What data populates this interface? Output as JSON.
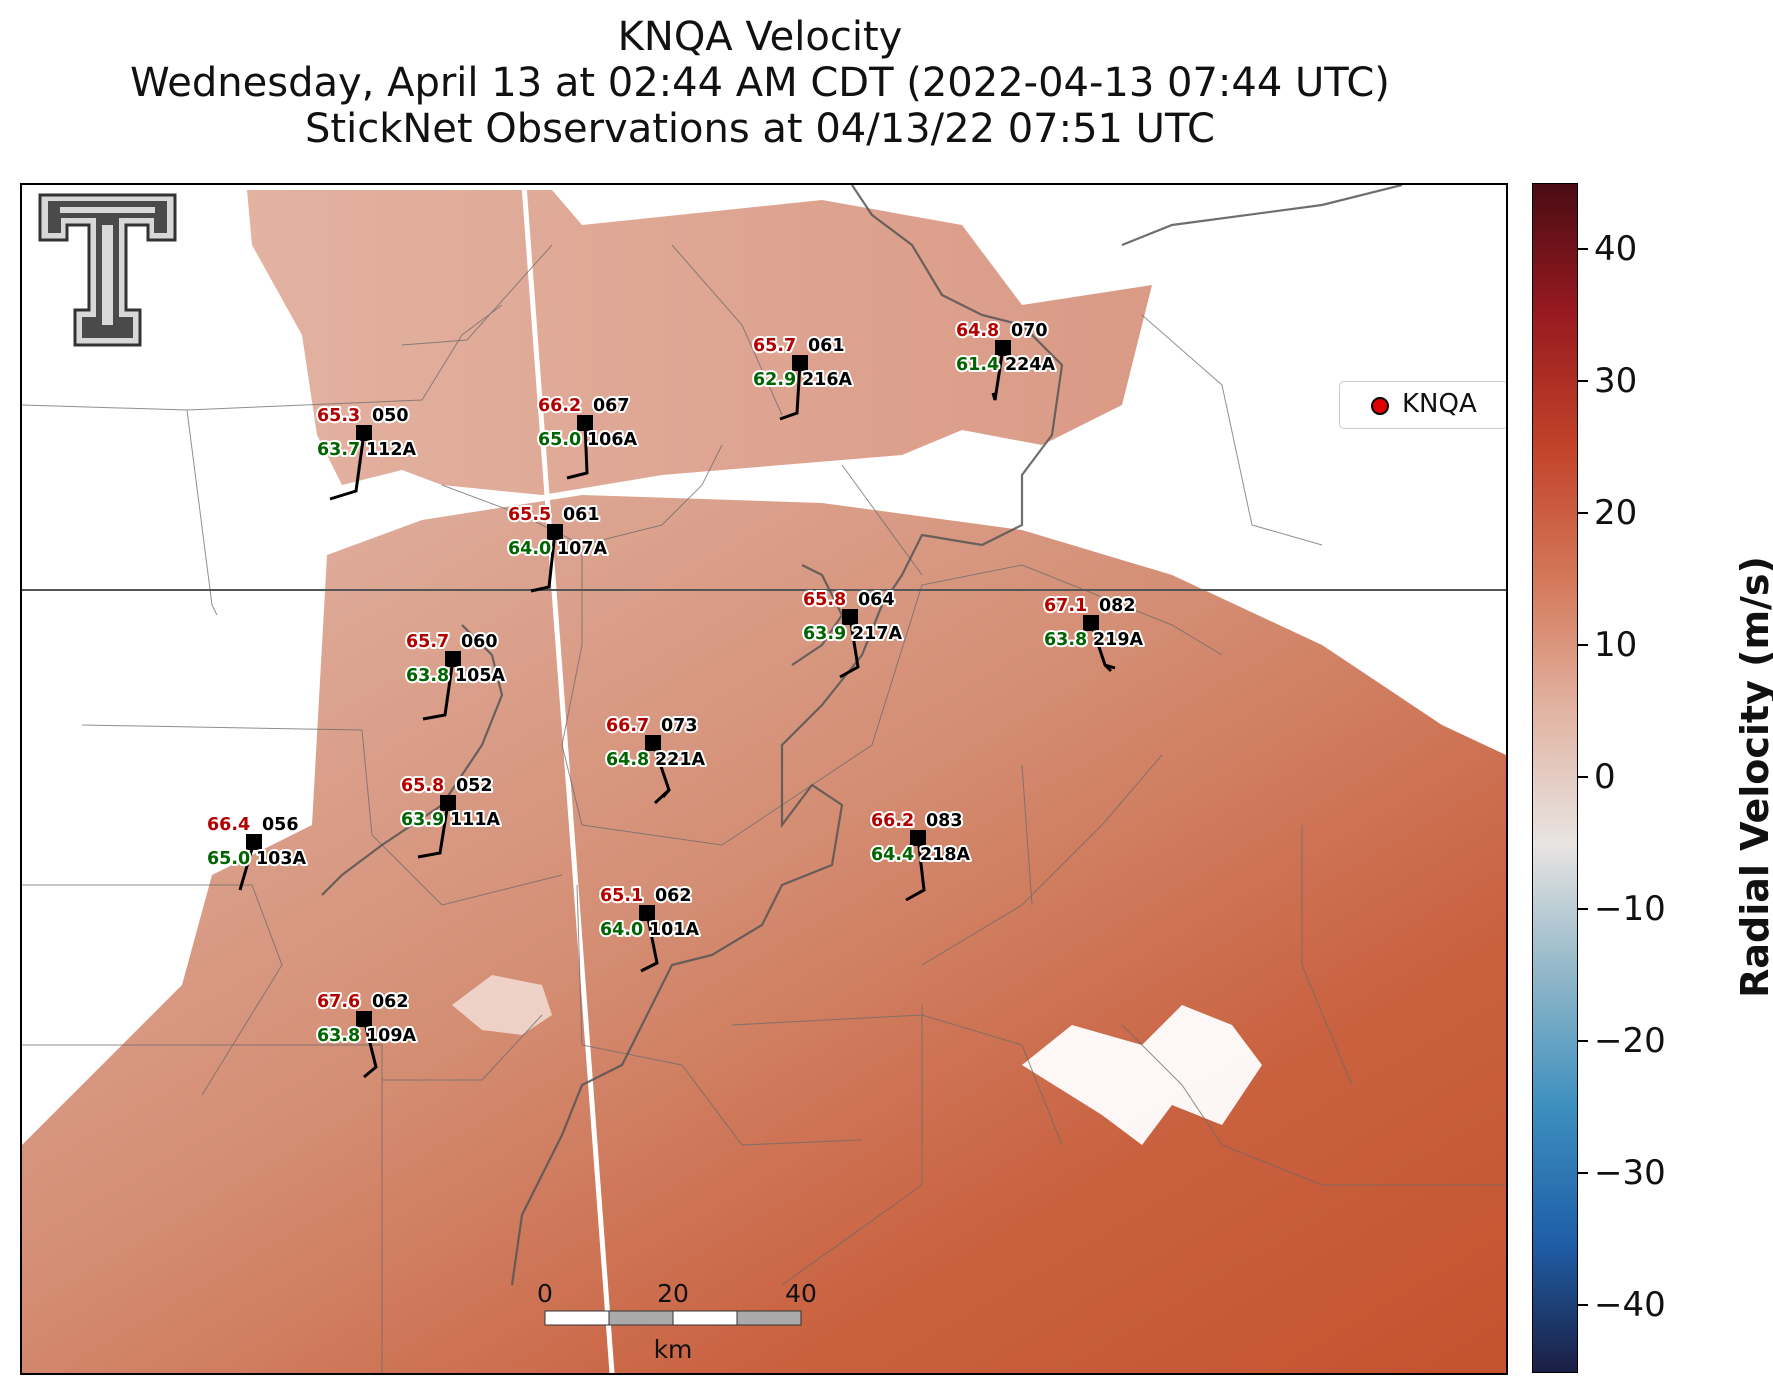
{
  "title": {
    "line1": "KNQA Velocity",
    "line2": "Wednesday, April 13 at 02:44 AM CDT (2022-04-13 07:44 UTC)",
    "line3": "StickNet Observations at 04/13/22 07:51 UTC"
  },
  "legend": {
    "label": "KNQA",
    "marker_color": "#e00000"
  },
  "colorbar": {
    "label": "Radial Velocity (m/s)",
    "ticks": [
      "40",
      "30",
      "20",
      "10",
      "0",
      "−10",
      "−20",
      "−30",
      "−40"
    ],
    "range": [
      -45,
      45
    ],
    "colors": [
      "#1b1f45",
      "#1f5fa8",
      "#3d8fbf",
      "#8fb6c8",
      "#e8e4e2",
      "#e2b4a3",
      "#d4785a",
      "#c2432a",
      "#9a1a20",
      "#4a0c14"
    ]
  },
  "scale_bar": {
    "labels": [
      "0",
      "20",
      "40"
    ],
    "unit": "km"
  },
  "logo": {
    "name": "Texas Tech Double T"
  },
  "colors": {
    "temperature": "#b30000",
    "dewpoint": "#006400",
    "id_text": "#000000"
  },
  "stations": [
    {
      "id": "112A",
      "temp": "65.3",
      "dewp": "63.7",
      "dir": "050"
    },
    {
      "id": "106A",
      "temp": "66.2",
      "dewp": "65.0",
      "dir": "067"
    },
    {
      "id": "216A",
      "temp": "65.7",
      "dewp": "62.9",
      "dir": "061"
    },
    {
      "id": "224A",
      "temp": "64.8",
      "dewp": "61.4",
      "dir": "070"
    },
    {
      "id": "107A",
      "temp": "65.5",
      "dewp": "64.0",
      "dir": "061"
    },
    {
      "id": "217A",
      "temp": "65.8",
      "dewp": "63.9",
      "dir": "064"
    },
    {
      "id": "219A",
      "temp": "67.1",
      "dewp": "63.8",
      "dir": "082"
    },
    {
      "id": "105A",
      "temp": "65.7",
      "dewp": "63.8",
      "dir": "060"
    },
    {
      "id": "221A",
      "temp": "66.7",
      "dewp": "64.8",
      "dir": "073"
    },
    {
      "id": "111A",
      "temp": "65.8",
      "dewp": "63.9",
      "dir": "052"
    },
    {
      "id": "103A",
      "temp": "66.4",
      "dewp": "65.0",
      "dir": "056"
    },
    {
      "id": "218A",
      "temp": "66.2",
      "dewp": "64.4",
      "dir": "083"
    },
    {
      "id": "101A",
      "temp": "65.1",
      "dewp": "64.0",
      "dir": "062"
    },
    {
      "id": "109A",
      "temp": "67.6",
      "dewp": "63.8",
      "dir": "062"
    }
  ]
}
